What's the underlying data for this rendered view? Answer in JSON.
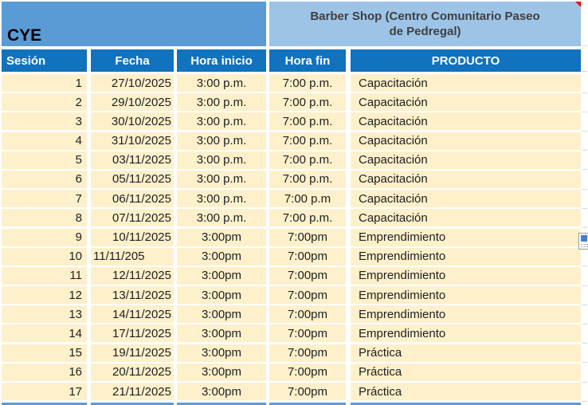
{
  "title_band": {
    "left_title": "CYE",
    "venue_title_line1": "Barber Shop (Centro Comunitario Paseo",
    "venue_title_line2": "de Pedregal)"
  },
  "table": {
    "columns": [
      "Sesión",
      "Fecha",
      "Hora inicio",
      "Hora fin",
      "PRODUCTO"
    ],
    "rows": [
      {
        "sesion": "1",
        "fecha": "27/10/2025",
        "hora_inicio": "3:00 p.m.",
        "hora_fin": "7:00 p.m.",
        "producto": "Capacitación"
      },
      {
        "sesion": "2",
        "fecha": "29/10/2025",
        "hora_inicio": "3:00 p.m.",
        "hora_fin": "7:00 p.m.",
        "producto": "Capacitación"
      },
      {
        "sesion": "3",
        "fecha": "30/10/2025",
        "hora_inicio": "3:00 p.m.",
        "hora_fin": "7:00 p.m.",
        "producto": "Capacitación"
      },
      {
        "sesion": "4",
        "fecha": "31/10/2025",
        "hora_inicio": "3:00 p.m.",
        "hora_fin": "7:00 p.m.",
        "producto": "Capacitación"
      },
      {
        "sesion": "5",
        "fecha": "03/11/2025",
        "hora_inicio": "3:00 p.m.",
        "hora_fin": "7:00 p.m.",
        "producto": "Capacitación"
      },
      {
        "sesion": "6",
        "fecha": "05/11/2025",
        "hora_inicio": "3:00 p.m.",
        "hora_fin": "7:00 p.m.",
        "producto": "Capacitación"
      },
      {
        "sesion": "7",
        "fecha": "06/11/2025",
        "hora_inicio": "3:00 p.m.",
        "hora_fin": "7:00 p.m",
        "producto": "Capacitación"
      },
      {
        "sesion": "8",
        "fecha": "07/11/2025",
        "hora_inicio": "3:00 p.m.",
        "hora_fin": "7:00 p.m.",
        "producto": "Capacitación"
      },
      {
        "sesion": "9",
        "fecha": "10/11/2025",
        "hora_inicio": "3:00pm",
        "hora_fin": "7:00pm",
        "producto": "Emprendimiento"
      },
      {
        "sesion": "10",
        "fecha": "11/11/205",
        "fecha_align": "left",
        "hora_inicio": "3:00pm",
        "hora_fin": "7:00pm",
        "producto": "Emprendimiento"
      },
      {
        "sesion": "11",
        "fecha": "12/11/2025",
        "hora_inicio": "3:00pm",
        "hora_fin": "7:00pm",
        "producto": "Emprendimiento"
      },
      {
        "sesion": "12",
        "fecha": "13/11/2025",
        "hora_inicio": "3:00pm",
        "hora_fin": "7:00pm",
        "producto": "Emprendimiento"
      },
      {
        "sesion": "13",
        "fecha": "14/11/2025",
        "hora_inicio": "3:00pm",
        "hora_fin": "7:00pm",
        "producto": "Emprendimiento"
      },
      {
        "sesion": "14",
        "fecha": "17/11/2025",
        "hora_inicio": "3:00pm",
        "hora_fin": "7:00pm",
        "producto": "Emprendimiento"
      },
      {
        "sesion": "15",
        "fecha": "19/11/2025",
        "hora_inicio": "3:00pm",
        "hora_fin": "7:00pm",
        "producto": "Práctica"
      },
      {
        "sesion": "16",
        "fecha": "20/11/2025",
        "hora_inicio": "3:00pm",
        "hora_fin": "7:00pm",
        "producto": "Práctica"
      },
      {
        "sesion": "17",
        "fecha": "21/11/2025",
        "hora_inicio": "3:00pm",
        "hora_fin": "7:00pm",
        "producto": "Práctica"
      }
    ]
  },
  "icons": {
    "comment_indicator": "red-corner-triangle",
    "paste_options": "paste-options-widget"
  },
  "colors": {
    "band_left_blue": "#5B9BD5",
    "band_right_blue": "#9DC3E6",
    "header_blue": "#1172BE",
    "row_cream": "#FDF0CB",
    "comment_red": "#FF0000"
  }
}
